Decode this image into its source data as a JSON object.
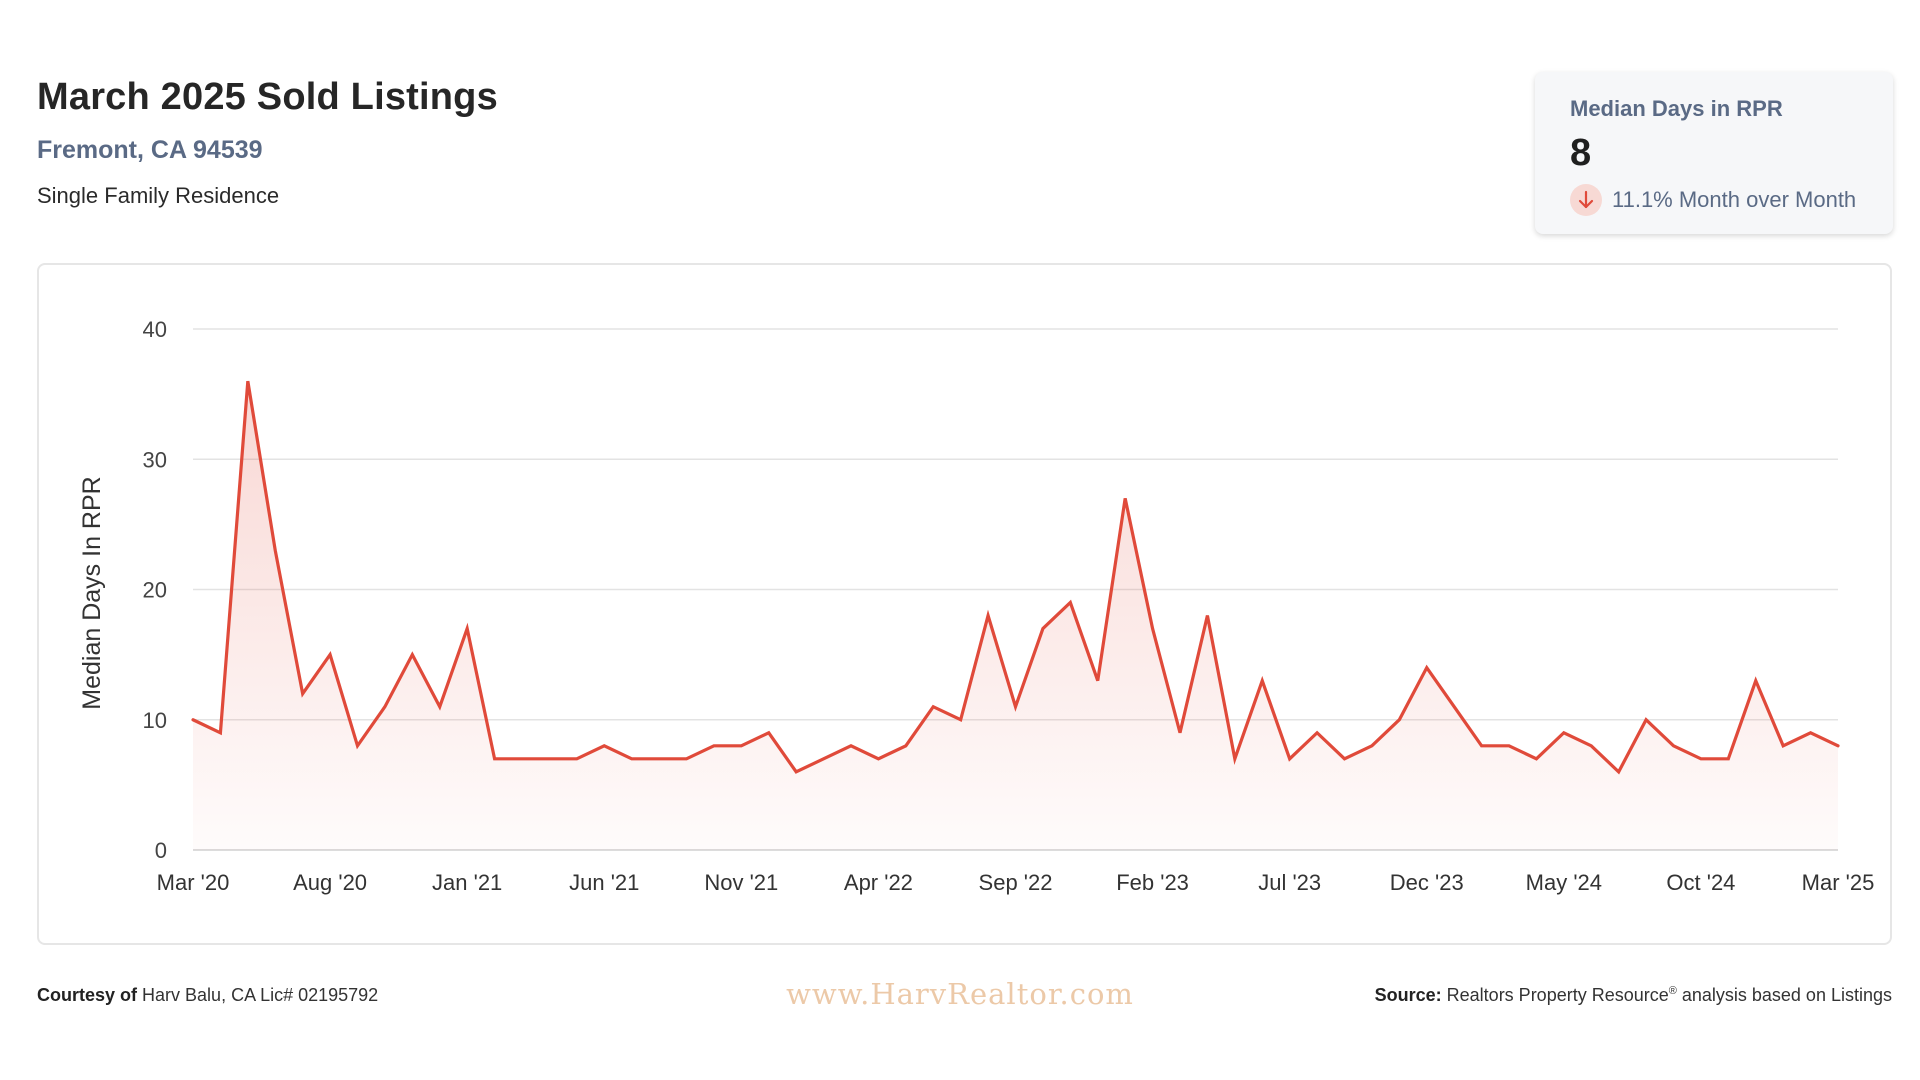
{
  "header": {
    "title": "March 2025 Sold Listings",
    "location": "Fremont, CA 94539",
    "property_type": "Single Family Residence"
  },
  "stat_card": {
    "label": "Median Days in RPR",
    "value": "8",
    "change": "11.1% Month over Month",
    "change_icon": "arrow-down-icon",
    "change_icon_color": "#e04a3a"
  },
  "footer": {
    "courtesy_label": "Courtesy of",
    "courtesy_text": "Harv Balu, CA Lic# 02195792",
    "watermark": "www.HarvRealtor.com",
    "source_label": "Source:",
    "source_text": "Realtors Property Resource",
    "source_mark": "®",
    "source_suffix": " analysis based on Listings"
  },
  "chart_data": {
    "type": "area",
    "ylabel": "Median Days In RPR",
    "ylim": [
      0,
      40
    ],
    "yticks": [
      0,
      10,
      20,
      30,
      40
    ],
    "x_tick_labels": [
      "Mar '20",
      "Aug '20",
      "Jan '21",
      "Jun '21",
      "Nov '21",
      "Apr '22",
      "Sep '22",
      "Feb '23",
      "Jul '23",
      "Dec '23",
      "May '24",
      "Oct '24",
      "Mar '25"
    ],
    "x_start": "Mar '20",
    "x_end": "Mar '25",
    "grid": true,
    "line_color": "#e04a3a",
    "fill_color": "#e04a3a",
    "series": [
      {
        "values": [
          10,
          9,
          36,
          23,
          12,
          15,
          8,
          11,
          15,
          11,
          17,
          7,
          7,
          7,
          7,
          8,
          7,
          7,
          7,
          8,
          8,
          9,
          6,
          7,
          8,
          7,
          8,
          11,
          10,
          18,
          11,
          17,
          19,
          13,
          27,
          17,
          9,
          18,
          7,
          13,
          7,
          9,
          7,
          8,
          10,
          14,
          11,
          8,
          8,
          7,
          9,
          8,
          6,
          10,
          8,
          7,
          7,
          13,
          8,
          9,
          8
        ]
      }
    ]
  }
}
